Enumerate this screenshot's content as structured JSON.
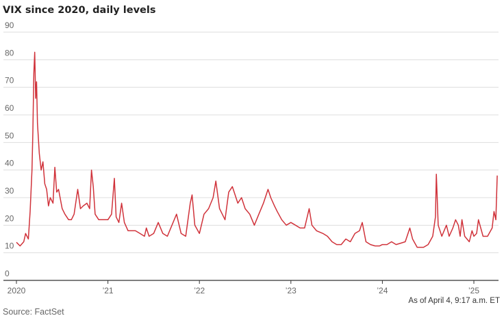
{
  "chart_data": {
    "type": "line",
    "title": "VIX since 2020, daily levels",
    "xlabel": "",
    "ylabel": "",
    "ylim": [
      0,
      90
    ],
    "xlim": [
      2019.98,
      2025.26
    ],
    "yticks": [
      0,
      10,
      20,
      30,
      40,
      50,
      60,
      70,
      80,
      90
    ],
    "xticks": [
      {
        "value": 2020,
        "label": "2020"
      },
      {
        "value": 2021,
        "label": "’21"
      },
      {
        "value": 2022,
        "label": "’22"
      },
      {
        "value": 2023,
        "label": "’23"
      },
      {
        "value": 2024,
        "label": "’24"
      },
      {
        "value": 2025,
        "label": "’25"
      }
    ],
    "grid": true,
    "color": "#d0323a",
    "series": [
      {
        "name": "VIX",
        "x": [
          2020.0,
          2020.04,
          2020.08,
          2020.1,
          2020.13,
          2020.15,
          2020.17,
          2020.18,
          2020.19,
          2020.2,
          2020.21,
          2020.22,
          2020.23,
          2020.25,
          2020.27,
          2020.29,
          2020.31,
          2020.33,
          2020.35,
          2020.37,
          2020.4,
          2020.42,
          2020.44,
          2020.46,
          2020.5,
          2020.53,
          2020.57,
          2020.6,
          2020.63,
          2020.67,
          2020.7,
          2020.73,
          2020.77,
          2020.8,
          2020.82,
          2020.84,
          2020.86,
          2020.9,
          2020.95,
          2021.0,
          2021.04,
          2021.07,
          2021.09,
          2021.12,
          2021.15,
          2021.18,
          2021.22,
          2021.26,
          2021.3,
          2021.35,
          2021.4,
          2021.42,
          2021.45,
          2021.5,
          2021.55,
          2021.6,
          2021.65,
          2021.7,
          2021.75,
          2021.8,
          2021.85,
          2021.9,
          2021.92,
          2021.95,
          2022.0,
          2022.05,
          2022.1,
          2022.15,
          2022.18,
          2022.22,
          2022.28,
          2022.32,
          2022.36,
          2022.42,
          2022.46,
          2022.5,
          2022.55,
          2022.6,
          2022.65,
          2022.7,
          2022.75,
          2022.78,
          2022.82,
          2022.85,
          2022.9,
          2022.95,
          2023.0,
          2023.05,
          2023.1,
          2023.15,
          2023.2,
          2023.23,
          2023.28,
          2023.35,
          2023.4,
          2023.45,
          2023.5,
          2023.55,
          2023.6,
          2023.65,
          2023.7,
          2023.75,
          2023.78,
          2023.82,
          2023.87,
          2023.92,
          2023.97,
          2024.0,
          2024.05,
          2024.1,
          2024.15,
          2024.2,
          2024.25,
          2024.3,
          2024.33,
          2024.38,
          2024.45,
          2024.5,
          2024.55,
          2024.58,
          2024.59,
          2024.61,
          2024.65,
          2024.7,
          2024.73,
          2024.77,
          2024.8,
          2024.83,
          2024.85,
          2024.87,
          2024.9,
          2024.95,
          2024.98,
          2025.0,
          2025.03,
          2025.05,
          2025.1,
          2025.15,
          2025.2,
          2025.22,
          2025.24,
          2025.255
        ],
        "y": [
          13.8,
          12.5,
          14,
          17,
          15,
          25,
          40,
          54,
          75,
          82.7,
          66,
          72,
          57,
          46,
          40,
          43,
          35,
          33,
          27,
          30,
          28,
          41,
          32,
          33,
          26,
          24,
          22,
          22,
          24,
          33,
          26,
          27,
          28,
          26,
          40,
          34,
          24,
          22,
          22,
          22,
          24,
          37,
          23,
          21,
          28,
          21,
          18,
          18,
          18,
          17,
          16,
          19,
          16,
          17,
          21,
          17,
          16,
          20,
          24,
          17,
          16,
          28,
          31,
          20,
          17,
          24,
          26,
          30,
          36,
          26,
          22,
          32,
          34,
          28,
          30,
          26,
          24,
          20,
          24,
          28,
          33,
          30,
          27,
          25,
          22,
          20,
          21,
          20,
          19,
          19,
          26,
          20,
          18,
          17,
          16,
          14,
          13,
          13,
          15,
          14,
          17,
          18,
          21,
          14,
          13,
          12.5,
          12.5,
          13,
          13,
          14,
          13,
          13.5,
          14,
          19,
          15,
          12,
          12,
          13,
          16,
          23,
          38.5,
          20,
          16,
          20,
          16,
          19,
          22,
          20,
          16,
          22,
          16,
          14,
          18,
          16,
          17,
          22,
          16,
          16,
          19,
          25,
          22,
          38
        ]
      }
    ],
    "annotations": [
      "As of April 4, 9:17 a.m. ET"
    ],
    "source": "Source: FactSet"
  }
}
